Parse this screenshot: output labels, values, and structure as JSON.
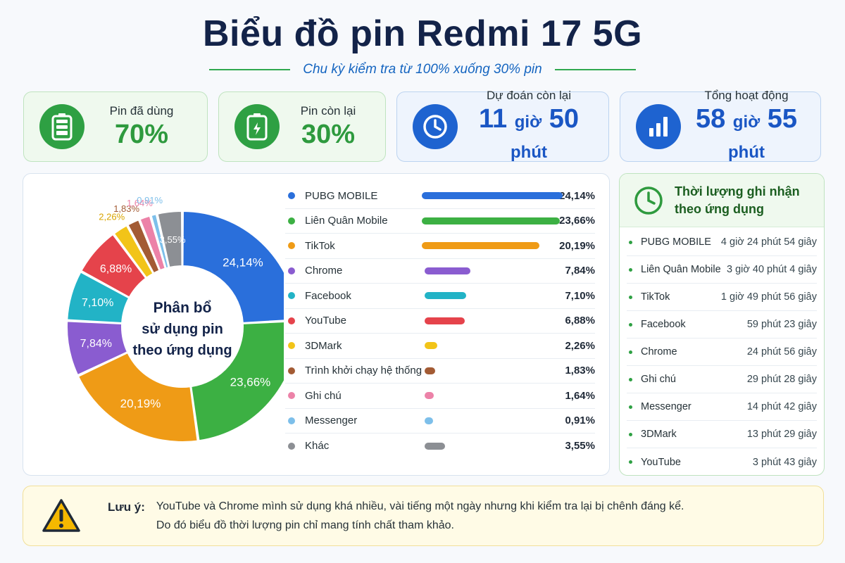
{
  "header": {
    "title": "Biểu đồ pin Redmi 17 5G",
    "subtitle": "Chu kỳ kiểm tra từ 100% xuống 30% pin"
  },
  "stats": [
    {
      "label": "Pin đã dùng",
      "value": "70%",
      "icon": "battery-full-icon",
      "theme": "green"
    },
    {
      "label": "Pin còn lại",
      "value": "30%",
      "icon": "battery-low-icon",
      "theme": "green"
    },
    {
      "label": "Dự đoán còn lại",
      "value_hours": "11",
      "hours_unit": "giờ",
      "value_minutes": "50",
      "minutes_unit": "phút",
      "icon": "clock-icon",
      "theme": "blue"
    },
    {
      "label": "Tổng hoạt động",
      "value_hours": "58",
      "hours_unit": "giờ",
      "value_minutes": "55",
      "minutes_unit": "phút",
      "icon": "bar-chart-icon",
      "theme": "blue"
    }
  ],
  "chart_data": {
    "type": "pie",
    "center_label": [
      "Phân bổ",
      "sử dụng pin",
      "theo ứng dụng"
    ],
    "legend": "right",
    "series": [
      {
        "name": "PUBG MOBILE",
        "value": 24.14,
        "label": "24,14%",
        "color": "#2a6fdb"
      },
      {
        "name": "Liên Quân Mobile",
        "value": 23.66,
        "label": "23,66%",
        "color": "#3cb043"
      },
      {
        "name": "TikTok",
        "value": 20.19,
        "label": "20,19%",
        "color": "#ef9b16"
      },
      {
        "name": "Chrome",
        "value": 7.84,
        "label": "7,84%",
        "color": "#8a5cd0"
      },
      {
        "name": "Facebook",
        "value": 7.1,
        "label": "7,10%",
        "color": "#22b3c6"
      },
      {
        "name": "YouTube",
        "value": 6.88,
        "label": "6,88%",
        "color": "#e5434b"
      },
      {
        "name": "3DMark",
        "value": 2.26,
        "label": "2,26%",
        "color": "#f2c418"
      },
      {
        "name": "Trình khởi chạy hệ thống",
        "value": 1.83,
        "label": "1,83%",
        "color": "#a35b34"
      },
      {
        "name": "Ghi chú",
        "value": 1.64,
        "label": "1,64%",
        "color": "#ec82a8"
      },
      {
        "name": "Messenger",
        "value": 0.91,
        "label": "0,91%",
        "color": "#7dbfea"
      },
      {
        "name": "Khác",
        "value": 3.55,
        "label": "3,55%",
        "color": "#8c8f94"
      }
    ]
  },
  "usage_panel": {
    "title_line1": "Thời lượng ghi nhận",
    "title_line2": "theo ứng dụng",
    "items": [
      {
        "name": "PUBG MOBILE",
        "time": "4 giờ 24 phút 54 giây"
      },
      {
        "name": "Liên Quân Mobile",
        "time": "3 giờ 40 phút 4 giây"
      },
      {
        "name": "TikTok",
        "time": "1 giờ 49 phút 56 giây"
      },
      {
        "name": "Facebook",
        "time": "59 phút 23 giây"
      },
      {
        "name": "Chrome",
        "time": "24 phút 56 giây"
      },
      {
        "name": "Ghi chú",
        "time": "29 phút 28 giây"
      },
      {
        "name": "Messenger",
        "time": "14 phút 42 giây"
      },
      {
        "name": "3DMark",
        "time": "13 phút 29 giây"
      },
      {
        "name": "YouTube",
        "time": "3 phút 43 giây"
      }
    ]
  },
  "note": {
    "label": "Lưu ý:",
    "line1": "YouTube và Chrome mình sử dụng khá nhiều, vài tiếng một ngày nhưng khi kiểm tra lại bị chênh đáng kể.",
    "line2": "Do đó biểu đồ thời lượng pin chỉ mang tính chất tham khảo.",
    "icon": "warning-icon"
  }
}
